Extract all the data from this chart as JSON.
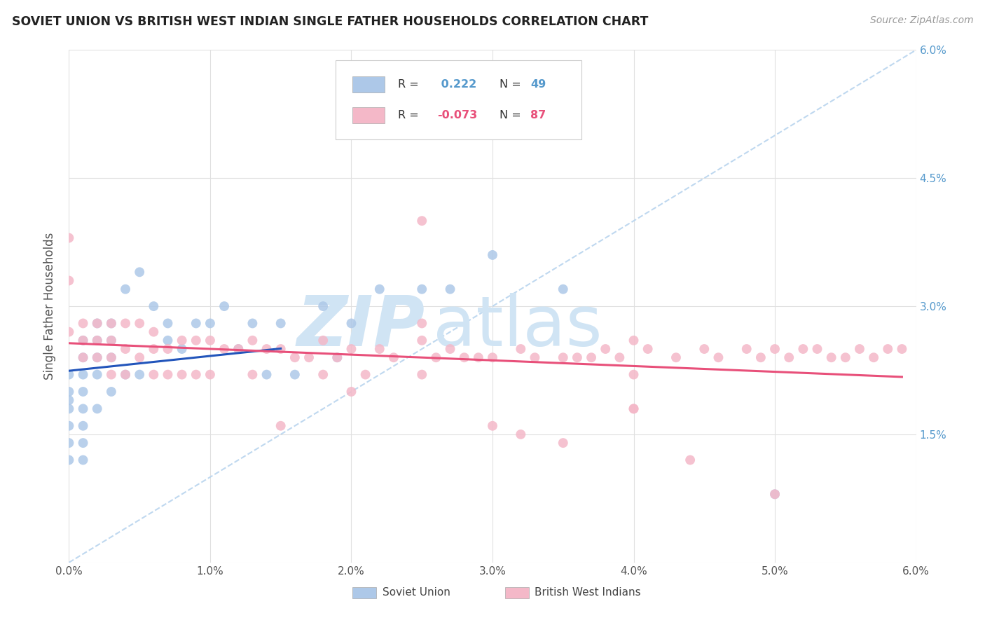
{
  "title": "SOVIET UNION VS BRITISH WEST INDIAN SINGLE FATHER HOUSEHOLDS CORRELATION CHART",
  "source": "Source: ZipAtlas.com",
  "ylabel": "Single Father Households",
  "xlim": [
    0,
    0.06
  ],
  "ylim": [
    0,
    0.06
  ],
  "r_soviet": 0.222,
  "n_soviet": 49,
  "r_bwi": -0.073,
  "n_bwi": 87,
  "color_soviet": "#adc8e8",
  "color_bwi": "#f4b8c8",
  "line_color_soviet": "#2255bb",
  "line_color_bwi": "#e8507a",
  "diag_color": "#b8d4ee",
  "background_color": "#ffffff",
  "grid_color": "#e0e0e0",
  "title_color": "#222222",
  "axis_label_color": "#555555",
  "right_tick_color": "#5599cc",
  "soviet_x": [
    0.0,
    0.0,
    0.0,
    0.0,
    0.0,
    0.0,
    0.0,
    0.001,
    0.001,
    0.001,
    0.001,
    0.001,
    0.001,
    0.001,
    0.001,
    0.002,
    0.002,
    0.002,
    0.002,
    0.002,
    0.003,
    0.003,
    0.003,
    0.003,
    0.004,
    0.004,
    0.005,
    0.005,
    0.006,
    0.007,
    0.007,
    0.008,
    0.009,
    0.01,
    0.011,
    0.012,
    0.013,
    0.014,
    0.015,
    0.016,
    0.018,
    0.019,
    0.02,
    0.022,
    0.025,
    0.027,
    0.03,
    0.035,
    0.05
  ],
  "soviet_y": [
    0.022,
    0.02,
    0.019,
    0.018,
    0.016,
    0.014,
    0.012,
    0.026,
    0.024,
    0.022,
    0.02,
    0.018,
    0.016,
    0.014,
    0.012,
    0.028,
    0.026,
    0.024,
    0.022,
    0.018,
    0.028,
    0.026,
    0.024,
    0.02,
    0.032,
    0.022,
    0.034,
    0.022,
    0.03,
    0.028,
    0.026,
    0.025,
    0.028,
    0.028,
    0.03,
    0.025,
    0.028,
    0.022,
    0.028,
    0.022,
    0.03,
    0.024,
    0.028,
    0.032,
    0.032,
    0.032,
    0.036,
    0.032,
    0.008
  ],
  "bwi_x": [
    0.0,
    0.0,
    0.0,
    0.001,
    0.001,
    0.001,
    0.002,
    0.002,
    0.002,
    0.003,
    0.003,
    0.003,
    0.003,
    0.004,
    0.004,
    0.004,
    0.005,
    0.005,
    0.006,
    0.006,
    0.006,
    0.007,
    0.007,
    0.008,
    0.008,
    0.009,
    0.009,
    0.01,
    0.01,
    0.011,
    0.012,
    0.013,
    0.013,
    0.014,
    0.015,
    0.016,
    0.017,
    0.018,
    0.018,
    0.019,
    0.02,
    0.021,
    0.022,
    0.023,
    0.025,
    0.025,
    0.026,
    0.027,
    0.028,
    0.029,
    0.03,
    0.032,
    0.033,
    0.035,
    0.036,
    0.037,
    0.038,
    0.039,
    0.04,
    0.04,
    0.041,
    0.043,
    0.045,
    0.046,
    0.048,
    0.049,
    0.05,
    0.051,
    0.052,
    0.053,
    0.054,
    0.055,
    0.056,
    0.057,
    0.058,
    0.059,
    0.032,
    0.035,
    0.04,
    0.044,
    0.015,
    0.02,
    0.025,
    0.03,
    0.025,
    0.04,
    0.05
  ],
  "bwi_y": [
    0.038,
    0.033,
    0.027,
    0.028,
    0.026,
    0.024,
    0.028,
    0.026,
    0.024,
    0.028,
    0.026,
    0.024,
    0.022,
    0.028,
    0.025,
    0.022,
    0.028,
    0.024,
    0.027,
    0.025,
    0.022,
    0.025,
    0.022,
    0.026,
    0.022,
    0.026,
    0.022,
    0.026,
    0.022,
    0.025,
    0.025,
    0.026,
    0.022,
    0.025,
    0.025,
    0.024,
    0.024,
    0.026,
    0.022,
    0.024,
    0.025,
    0.022,
    0.025,
    0.024,
    0.026,
    0.022,
    0.024,
    0.025,
    0.024,
    0.024,
    0.024,
    0.025,
    0.024,
    0.024,
    0.024,
    0.024,
    0.025,
    0.024,
    0.026,
    0.022,
    0.025,
    0.024,
    0.025,
    0.024,
    0.025,
    0.024,
    0.025,
    0.024,
    0.025,
    0.025,
    0.024,
    0.024,
    0.025,
    0.024,
    0.025,
    0.025,
    0.015,
    0.014,
    0.018,
    0.012,
    0.016,
    0.02,
    0.028,
    0.016,
    0.04,
    0.018,
    0.008
  ],
  "watermark_zip_color": "#d0e4f4",
  "watermark_atlas_color": "#d0e4f4"
}
